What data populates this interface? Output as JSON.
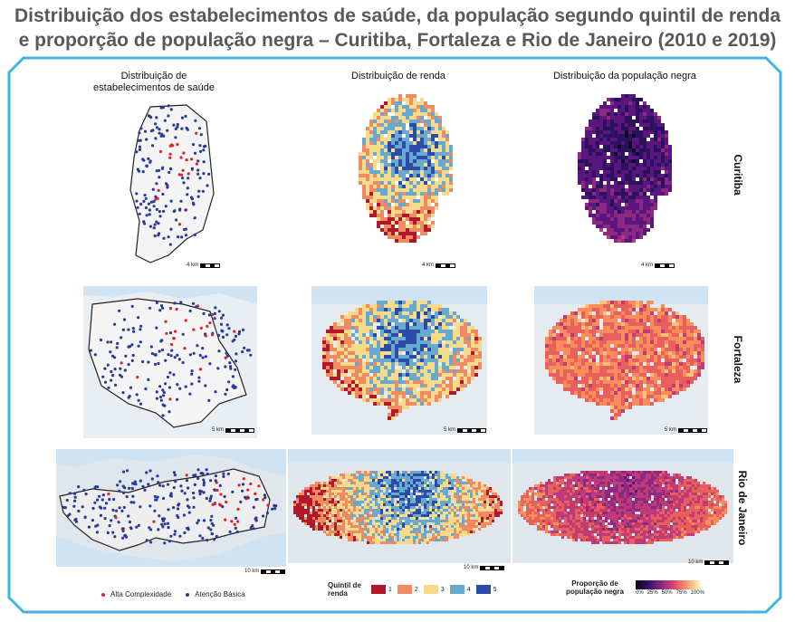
{
  "title": {
    "line1": "Distribuição dos estabelecimentos de saúde, da população segundo quintil de renda",
    "line2": "e proporção de população negra – Curitiba, Fortaleza e Rio de Janeiro (2010 e 2019)"
  },
  "columns": {
    "establishments": "Distribuição de estabelecimentos de saúde",
    "income": "Distribuição de renda",
    "black_population": "Distribuição da população negra"
  },
  "rows": {
    "curitiba": "Curitiba",
    "fortaleza": "Fortaleza",
    "rio": "Rio de Janeiro"
  },
  "scales": {
    "curitiba": "4 km",
    "fortaleza": "5 km",
    "rio": "10 km"
  },
  "legend": {
    "alta_complexidade": "Alta Complexidade",
    "atencao_basica": "Atenção Básica",
    "alta_color": "#e0202a",
    "basica_color": "#2a3a9a",
    "quintil_title": "Quintil de renda",
    "quintis": [
      {
        "label": "1",
        "color": "#b2182b"
      },
      {
        "label": "2",
        "color": "#ef8a62"
      },
      {
        "label": "3",
        "color": "#f6dc8a"
      },
      {
        "label": "4",
        "color": "#67a9cf"
      },
      {
        "label": "5",
        "color": "#2b4ba8"
      }
    ],
    "proporcao_title": "Proporção de população negra",
    "proporcao_ticks": [
      "0%",
      "25%",
      "50%",
      "75%",
      "100%"
    ]
  },
  "colors": {
    "frame": "#3fb4e5",
    "title": "#555a5e",
    "water": "#cfe3f2"
  }
}
